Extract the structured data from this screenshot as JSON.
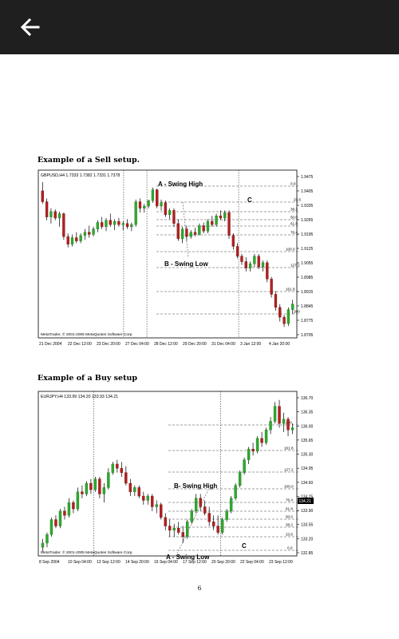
{
  "nav": {
    "back_icon": "arrow-left-icon"
  },
  "page_number": "6",
  "sections": [
    {
      "caption": "Example of a Sell setup.",
      "chart_data": {
        "type": "candlestick",
        "header": "GBPUSD,H4  1.7333 1.7382 1.7331 1.7378",
        "watermark": "MetaTrader, © 2001-2005 MetaQuotes Software Corp.",
        "x_ticks": [
          "21 Dec 2004",
          "22 Dec 12:00",
          "23 Dec 20:00",
          "27 Dec 04:00",
          "28 Dec 12:00",
          "29 Dec 20:00",
          "31 Dec 04:00",
          "3 Jan 12:00",
          "4 Jan 20:00"
        ],
        "y_ticks": [
          "1.9475",
          "1.9405",
          "1.9335",
          "1.9265",
          "1.9195",
          "1.9125",
          "1.9055",
          "1.8985",
          "1.8915",
          "1.8845",
          "1.8775",
          "1.8705"
        ],
        "ylim": [
          1.8705,
          1.9475
        ],
        "fib_levels": [
          "0.0",
          "23.6",
          "38.2",
          "50.0",
          "61.8",
          "76.4",
          "100.0",
          "127.2",
          "161.8",
          "200"
        ],
        "annotations": [
          "A - Swing High",
          "B - Swing Low",
          "C"
        ],
        "candles": [
          {
            "o": 1.938,
            "h": 1.942,
            "l": 1.932,
            "c": 1.933
          },
          {
            "o": 1.933,
            "h": 1.9345,
            "l": 1.9245,
            "c": 1.926
          },
          {
            "o": 1.926,
            "h": 1.93,
            "l": 1.923,
            "c": 1.9285
          },
          {
            "o": 1.9285,
            "h": 1.9295,
            "l": 1.9245,
            "c": 1.9255
          },
          {
            "o": 1.9255,
            "h": 1.9285,
            "l": 1.9215,
            "c": 1.9275
          },
          {
            "o": 1.9275,
            "h": 1.928,
            "l": 1.9155,
            "c": 1.917
          },
          {
            "o": 1.917,
            "h": 1.9185,
            "l": 1.912,
            "c": 1.9135
          },
          {
            "o": 1.9135,
            "h": 1.918,
            "l": 1.9125,
            "c": 1.9165
          },
          {
            "o": 1.9165,
            "h": 1.919,
            "l": 1.914,
            "c": 1.915
          },
          {
            "o": 1.915,
            "h": 1.9185,
            "l": 1.914,
            "c": 1.9175
          },
          {
            "o": 1.9175,
            "h": 1.9205,
            "l": 1.9155,
            "c": 1.919
          },
          {
            "o": 1.919,
            "h": 1.922,
            "l": 1.9165,
            "c": 1.918
          },
          {
            "o": 1.918,
            "h": 1.9215,
            "l": 1.917,
            "c": 1.9205
          },
          {
            "o": 1.9205,
            "h": 1.9245,
            "l": 1.919,
            "c": 1.9235
          },
          {
            "o": 1.9235,
            "h": 1.926,
            "l": 1.9205,
            "c": 1.9215
          },
          {
            "o": 1.9215,
            "h": 1.9255,
            "l": 1.9195,
            "c": 1.9245
          },
          {
            "o": 1.9245,
            "h": 1.9275,
            "l": 1.9215,
            "c": 1.9225
          },
          {
            "o": 1.9225,
            "h": 1.925,
            "l": 1.92,
            "c": 1.924
          },
          {
            "o": 1.924,
            "h": 1.9255,
            "l": 1.9215,
            "c": 1.9225
          },
          {
            "o": 1.9225,
            "h": 1.924,
            "l": 1.92,
            "c": 1.923
          },
          {
            "o": 1.923,
            "h": 1.925,
            "l": 1.9205,
            "c": 1.9215
          },
          {
            "o": 1.9215,
            "h": 1.9235,
            "l": 1.9195,
            "c": 1.9225
          },
          {
            "o": 1.9225,
            "h": 1.934,
            "l": 1.9215,
            "c": 1.933
          },
          {
            "o": 1.933,
            "h": 1.9345,
            "l": 1.928,
            "c": 1.93
          },
          {
            "o": 1.93,
            "h": 1.932,
            "l": 1.928,
            "c": 1.931
          },
          {
            "o": 1.931,
            "h": 1.934,
            "l": 1.93,
            "c": 1.9335
          },
          {
            "o": 1.9335,
            "h": 1.9395,
            "l": 1.9325,
            "c": 1.9385
          },
          {
            "o": 1.9385,
            "h": 1.939,
            "l": 1.93,
            "c": 1.931
          },
          {
            "o": 1.931,
            "h": 1.934,
            "l": 1.929,
            "c": 1.9325
          },
          {
            "o": 1.9325,
            "h": 1.9335,
            "l": 1.926,
            "c": 1.927
          },
          {
            "o": 1.927,
            "h": 1.93,
            "l": 1.925,
            "c": 1.929
          },
          {
            "o": 1.929,
            "h": 1.93,
            "l": 1.9215,
            "c": 1.923
          },
          {
            "o": 1.923,
            "h": 1.925,
            "l": 1.915,
            "c": 1.916
          },
          {
            "o": 1.916,
            "h": 1.9215,
            "l": 1.914,
            "c": 1.9205
          },
          {
            "o": 1.9205,
            "h": 1.922,
            "l": 1.915,
            "c": 1.917
          },
          {
            "o": 1.917,
            "h": 1.92,
            "l": 1.916,
            "c": 1.919
          },
          {
            "o": 1.919,
            "h": 1.921,
            "l": 1.917,
            "c": 1.918
          },
          {
            "o": 1.918,
            "h": 1.923,
            "l": 1.9175,
            "c": 1.922
          },
          {
            "o": 1.922,
            "h": 1.9235,
            "l": 1.9185,
            "c": 1.9195
          },
          {
            "o": 1.9195,
            "h": 1.925,
            "l": 1.9185,
            "c": 1.924
          },
          {
            "o": 1.924,
            "h": 1.9265,
            "l": 1.9215,
            "c": 1.9225
          },
          {
            "o": 1.9225,
            "h": 1.9275,
            "l": 1.9215,
            "c": 1.9265
          },
          {
            "o": 1.9265,
            "h": 1.929,
            "l": 1.9245,
            "c": 1.9255
          },
          {
            "o": 1.9255,
            "h": 1.929,
            "l": 1.924,
            "c": 1.928
          },
          {
            "o": 1.928,
            "h": 1.929,
            "l": 1.916,
            "c": 1.9175
          },
          {
            "o": 1.9175,
            "h": 1.9185,
            "l": 1.911,
            "c": 1.9125
          },
          {
            "o": 1.9125,
            "h": 1.914,
            "l": 1.907,
            "c": 1.908
          },
          {
            "o": 1.908,
            "h": 1.909,
            "l": 1.904,
            "c": 1.9055
          },
          {
            "o": 1.9055,
            "h": 1.9075,
            "l": 1.901,
            "c": 1.9025
          },
          {
            "o": 1.9025,
            "h": 1.9055,
            "l": 1.901,
            "c": 1.9045
          },
          {
            "o": 1.9045,
            "h": 1.909,
            "l": 1.903,
            "c": 1.908
          },
          {
            "o": 1.908,
            "h": 1.909,
            "l": 1.902,
            "c": 1.903
          },
          {
            "o": 1.903,
            "h": 1.906,
            "l": 1.901,
            "c": 1.905
          },
          {
            "o": 1.905,
            "h": 1.906,
            "l": 1.896,
            "c": 1.8975
          },
          {
            "o": 1.8975,
            "h": 1.8985,
            "l": 1.889,
            "c": 1.8905
          },
          {
            "o": 1.8905,
            "h": 1.892,
            "l": 1.883,
            "c": 1.8845
          },
          {
            "o": 1.8845,
            "h": 1.886,
            "l": 1.878,
            "c": 1.88
          },
          {
            "o": 1.88,
            "h": 1.881,
            "l": 1.8755,
            "c": 1.877
          },
          {
            "o": 1.877,
            "h": 1.8845,
            "l": 1.876,
            "c": 1.8835
          },
          {
            "o": 1.8835,
            "h": 1.888,
            "l": 1.8815,
            "c": 1.886
          }
        ]
      }
    },
    {
      "caption": "Example of a Buy setup",
      "chart_data": {
        "type": "candlestick",
        "header": "EURJPY,H4  133.99 134.20 133.93 134.21",
        "watermark": "MetaTrader, © 2001-2005 MetaQuotes Software Corp.",
        "x_ticks": [
          "8 Sep 2004",
          "10 Sep 04:00",
          "13 Sep 12:00",
          "14 Sep 20:00",
          "16 Sep 04:00",
          "17 Sep 12:00",
          "20 Sep 20:00",
          "22 Sep 04:00",
          "23 Sep 12:00"
        ],
        "y_ticks": [
          "136.70",
          "136.35",
          "136.00",
          "135.65",
          "135.30",
          "134.95",
          "134.60",
          "134.25",
          "133.90",
          "133.55",
          "133.20",
          "132.85"
        ],
        "ylim": [
          132.85,
          136.7
        ],
        "fib_levels": [
          "200",
          "161.8",
          "127.2",
          "100.0",
          "76.4",
          "61.8",
          "50.0",
          "38.2",
          "23.6",
          "0.0"
        ],
        "current_price": "134.21",
        "annotations": [
          "B- Swing High",
          "A - Swing Low",
          "C"
        ],
        "candles": [
          {
            "o": 133.05,
            "h": 133.25,
            "l": 132.95,
            "c": 133.15
          },
          {
            "o": 133.15,
            "h": 133.4,
            "l": 133.05,
            "c": 133.35
          },
          {
            "o": 133.35,
            "h": 133.75,
            "l": 133.3,
            "c": 133.7
          },
          {
            "o": 133.7,
            "h": 133.8,
            "l": 133.5,
            "c": 133.55
          },
          {
            "o": 133.55,
            "h": 133.95,
            "l": 133.5,
            "c": 133.9
          },
          {
            "o": 133.9,
            "h": 134.0,
            "l": 133.7,
            "c": 133.8
          },
          {
            "o": 133.8,
            "h": 134.2,
            "l": 133.75,
            "c": 134.1
          },
          {
            "o": 134.1,
            "h": 134.15,
            "l": 133.85,
            "c": 133.95
          },
          {
            "o": 133.95,
            "h": 134.45,
            "l": 133.9,
            "c": 134.35
          },
          {
            "o": 134.35,
            "h": 134.5,
            "l": 134.2,
            "c": 134.3
          },
          {
            "o": 134.3,
            "h": 134.6,
            "l": 134.25,
            "c": 134.55
          },
          {
            "o": 134.55,
            "h": 134.65,
            "l": 134.3,
            "c": 134.4
          },
          {
            "o": 134.4,
            "h": 134.7,
            "l": 134.35,
            "c": 134.65
          },
          {
            "o": 134.65,
            "h": 134.7,
            "l": 134.2,
            "c": 134.3
          },
          {
            "o": 134.3,
            "h": 134.55,
            "l": 134.1,
            "c": 134.45
          },
          {
            "o": 134.45,
            "h": 134.9,
            "l": 134.4,
            "c": 134.8
          },
          {
            "o": 134.8,
            "h": 135.05,
            "l": 134.75,
            "c": 135.0
          },
          {
            "o": 135.0,
            "h": 135.1,
            "l": 134.8,
            "c": 134.9
          },
          {
            "o": 134.9,
            "h": 135.05,
            "l": 134.7,
            "c": 134.8
          },
          {
            "o": 134.8,
            "h": 134.95,
            "l": 134.5,
            "c": 134.55
          },
          {
            "o": 134.55,
            "h": 134.65,
            "l": 134.25,
            "c": 134.35
          },
          {
            "o": 134.35,
            "h": 134.5,
            "l": 134.25,
            "c": 134.45
          },
          {
            "o": 134.45,
            "h": 134.5,
            "l": 134.2,
            "c": 134.25
          },
          {
            "o": 134.25,
            "h": 134.35,
            "l": 134.05,
            "c": 134.15
          },
          {
            "o": 134.15,
            "h": 134.3,
            "l": 134.05,
            "c": 134.25
          },
          {
            "o": 134.25,
            "h": 134.3,
            "l": 133.9,
            "c": 134.0
          },
          {
            "o": 134.0,
            "h": 134.15,
            "l": 133.85,
            "c": 134.05
          },
          {
            "o": 134.05,
            "h": 134.1,
            "l": 133.7,
            "c": 133.75
          },
          {
            "o": 133.75,
            "h": 133.85,
            "l": 133.45,
            "c": 133.55
          },
          {
            "o": 133.55,
            "h": 133.7,
            "l": 133.3,
            "c": 133.45
          },
          {
            "o": 133.45,
            "h": 133.6,
            "l": 133.3,
            "c": 133.5
          },
          {
            "o": 133.5,
            "h": 133.65,
            "l": 133.35,
            "c": 133.4
          },
          {
            "o": 133.4,
            "h": 133.55,
            "l": 133.15,
            "c": 133.3
          },
          {
            "o": 133.3,
            "h": 133.7,
            "l": 133.25,
            "c": 133.65
          },
          {
            "o": 133.65,
            "h": 133.95,
            "l": 133.6,
            "c": 133.9
          },
          {
            "o": 133.9,
            "h": 134.3,
            "l": 133.85,
            "c": 134.2
          },
          {
            "o": 134.2,
            "h": 134.3,
            "l": 133.9,
            "c": 134.0
          },
          {
            "o": 134.0,
            "h": 134.15,
            "l": 133.8,
            "c": 133.85
          },
          {
            "o": 133.85,
            "h": 134.0,
            "l": 133.55,
            "c": 133.65
          },
          {
            "o": 133.65,
            "h": 133.8,
            "l": 133.45,
            "c": 133.55
          },
          {
            "o": 133.55,
            "h": 133.8,
            "l": 133.35,
            "c": 133.4
          },
          {
            "o": 133.4,
            "h": 133.75,
            "l": 133.35,
            "c": 133.7
          },
          {
            "o": 133.7,
            "h": 133.95,
            "l": 133.65,
            "c": 133.9
          },
          {
            "o": 133.9,
            "h": 134.25,
            "l": 133.85,
            "c": 134.2
          },
          {
            "o": 134.2,
            "h": 134.55,
            "l": 134.15,
            "c": 134.5
          },
          {
            "o": 134.5,
            "h": 134.85,
            "l": 134.45,
            "c": 134.8
          },
          {
            "o": 134.8,
            "h": 135.15,
            "l": 134.75,
            "c": 135.1
          },
          {
            "o": 135.1,
            "h": 135.4,
            "l": 135.0,
            "c": 135.35
          },
          {
            "o": 135.35,
            "h": 135.5,
            "l": 135.2,
            "c": 135.3
          },
          {
            "o": 135.3,
            "h": 135.65,
            "l": 135.25,
            "c": 135.6
          },
          {
            "o": 135.6,
            "h": 135.75,
            "l": 135.4,
            "c": 135.5
          },
          {
            "o": 135.5,
            "h": 135.85,
            "l": 135.45,
            "c": 135.8
          },
          {
            "o": 135.8,
            "h": 136.1,
            "l": 135.7,
            "c": 136.0
          },
          {
            "o": 136.0,
            "h": 136.45,
            "l": 135.95,
            "c": 136.35
          },
          {
            "o": 136.35,
            "h": 136.5,
            "l": 135.85,
            "c": 135.95
          },
          {
            "o": 135.95,
            "h": 136.2,
            "l": 135.75,
            "c": 136.05
          },
          {
            "o": 136.05,
            "h": 136.1,
            "l": 135.65,
            "c": 135.8
          },
          {
            "o": 135.8,
            "h": 135.95,
            "l": 135.7,
            "c": 135.85
          }
        ]
      }
    }
  ]
}
